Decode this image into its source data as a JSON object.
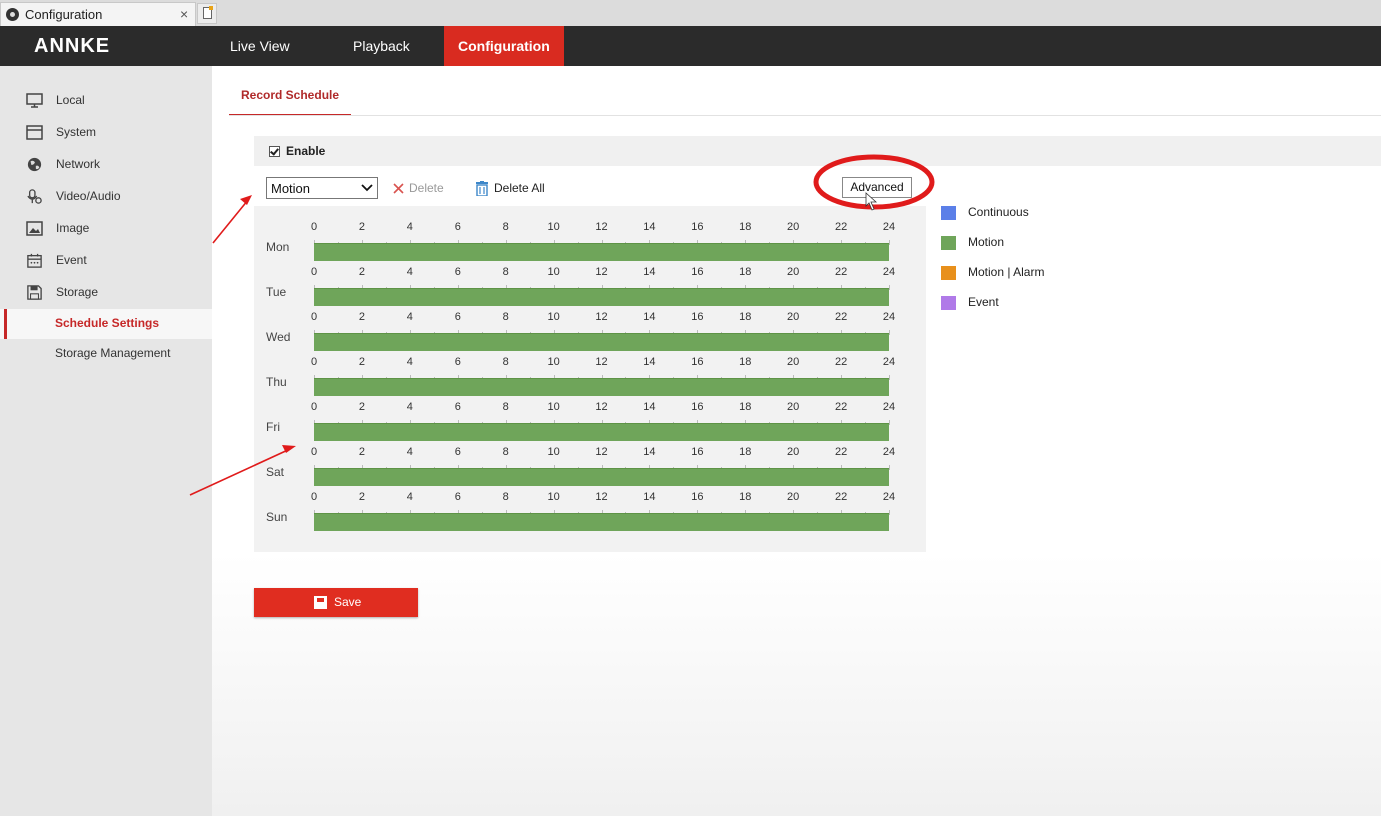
{
  "browser": {
    "tab_title": "Configuration",
    "tab_close": "×"
  },
  "brand": {
    "logo": "ANNKE"
  },
  "nav": {
    "items": [
      "Live View",
      "Playback",
      "Configuration"
    ],
    "active": "Configuration"
  },
  "sidebar": {
    "items": [
      {
        "label": "Local",
        "icon": "monitor-icon"
      },
      {
        "label": "System",
        "icon": "window-icon"
      },
      {
        "label": "Network",
        "icon": "globe-icon"
      },
      {
        "label": "Video/Audio",
        "icon": "mic-icon"
      },
      {
        "label": "Image",
        "icon": "image-icon"
      },
      {
        "label": "Event",
        "icon": "calendar-icon"
      },
      {
        "label": "Storage",
        "icon": "floppy-icon"
      }
    ],
    "sub_items": [
      {
        "label": "Schedule Settings",
        "active": true
      },
      {
        "label": "Storage Management",
        "active": false
      }
    ]
  },
  "page": {
    "tab": "Record Schedule",
    "enable_label": "Enable",
    "enable_checked": true,
    "record_type": "Motion",
    "delete_label": "Delete",
    "delete_all_label": "Delete All",
    "advanced_label": "Advanced",
    "save_label": "Save"
  },
  "schedule": {
    "tick_labels": [
      "0",
      "2",
      "4",
      "6",
      "8",
      "10",
      "12",
      "14",
      "16",
      "18",
      "20",
      "22",
      "24"
    ],
    "days": [
      {
        "label": "Mon",
        "type": "Motion",
        "start": 0,
        "end": 24
      },
      {
        "label": "Tue",
        "type": "Motion",
        "start": 0,
        "end": 24
      },
      {
        "label": "Wed",
        "type": "Motion",
        "start": 0,
        "end": 24
      },
      {
        "label": "Thu",
        "type": "Motion",
        "start": 0,
        "end": 24
      },
      {
        "label": "Fri",
        "type": "Motion",
        "start": 0,
        "end": 24
      },
      {
        "label": "Sat",
        "type": "Motion",
        "start": 0,
        "end": 24
      },
      {
        "label": "Sun",
        "type": "Motion",
        "start": 0,
        "end": 24
      }
    ]
  },
  "legend": [
    {
      "label": "Continuous",
      "color": "#5b7fe8"
    },
    {
      "label": "Motion",
      "color": "#6fa55a"
    },
    {
      "label": "Motion | Alarm",
      "color": "#e8901c"
    },
    {
      "label": "Event",
      "color": "#b07ae8"
    }
  ],
  "colors": {
    "accent": "#d92b20",
    "topbar": "#2b2b2b",
    "annotation": "#e01b1b"
  }
}
